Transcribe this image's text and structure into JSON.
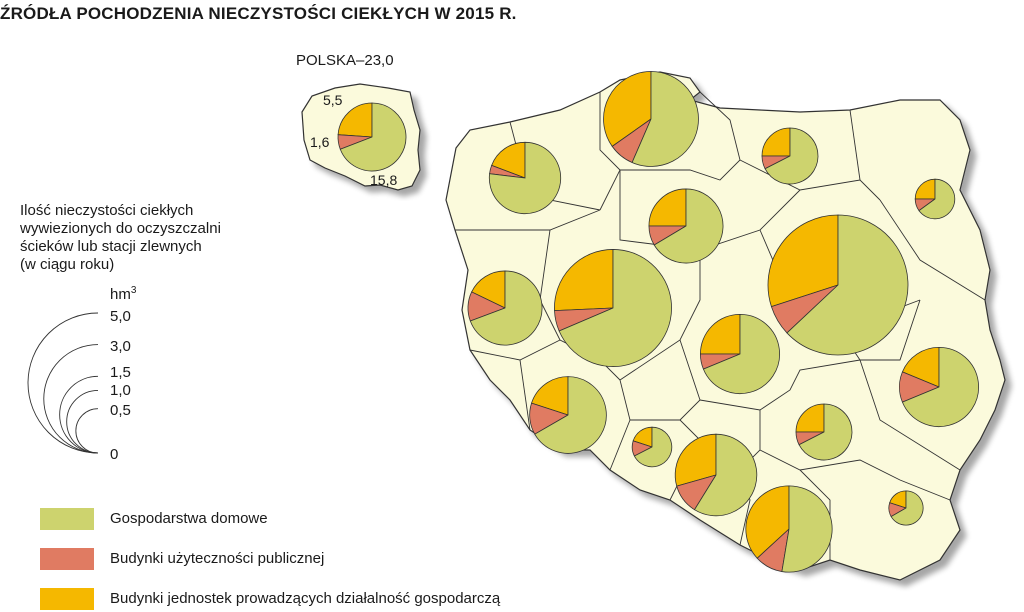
{
  "title": "ŹRÓDŁA POCHODZENIA NIECZYSTOŚCI CIEKŁYCH W 2015 R.",
  "inset": {
    "label": "POLSKA–23,0",
    "total": 23.0,
    "values": {
      "budynki_jednostek": 5.5,
      "budynki_uzytecznosci": 1.6,
      "gospodarstwa_domowe": 15.8
    },
    "labels": [
      "5,5",
      "1,6",
      "15,8"
    ]
  },
  "scale": {
    "title_lines": [
      "Ilość nieczystości ciekłych",
      "wywiezionych do oczyszczalni",
      "ścieków lub stacji zlewnych",
      "(w ciągu roku)"
    ],
    "unit": "hm",
    "unit_exp": "3",
    "values": [
      5.0,
      3.0,
      1.5,
      1.0,
      0.5,
      0
    ],
    "labels": [
      "5,0",
      "3,0",
      "1,5",
      "1,0",
      "0,5",
      "0"
    ]
  },
  "legend": [
    {
      "label": "Gospodarstwa domowe",
      "color": "#cdd36e"
    },
    {
      "label": "Budynki użyteczności publicznej",
      "color": "#e07b62"
    },
    {
      "label": "Budynki jednostek prowadzących działalność gospodarczą",
      "color": "#f5b800"
    }
  ],
  "colors": {
    "map_fill": "#fbfadc",
    "map_stroke": "#333333",
    "outline": "#333333"
  },
  "regions": [
    {
      "total": 1.3,
      "budynki_jednostek": 0.25,
      "budynki_uzytecznosci": 0.05
    },
    {
      "total": 2.3,
      "budynki_jednostek": 0.8,
      "budynki_uzytecznosci": 0.2
    },
    {
      "total": 0.8,
      "budynki_jednostek": 0.2,
      "budynki_uzytecznosci": 0.06
    },
    {
      "total": 0.4,
      "budynki_jednostek": 0.1,
      "budynki_uzytecznosci": 0.04
    },
    {
      "total": 1.4,
      "budynki_jednostek": 0.35,
      "budynki_uzytecznosci": 0.12
    },
    {
      "total": 5.0,
      "budynki_jednostek": 1.5,
      "budynki_uzytecznosci": 0.35
    },
    {
      "total": 1.4,
      "budynki_jednostek": 0.25,
      "budynki_uzytecznosci": 0.18
    },
    {
      "total": 3.5,
      "budynki_jednostek": 0.9,
      "budynki_uzytecznosci": 0.2
    },
    {
      "total": 1.6,
      "budynki_jednostek": 0.4,
      "budynki_uzytecznosci": 0.1
    },
    {
      "total": 1.5,
      "budynki_jednostek": 0.3,
      "budynki_uzytecznosci": 0.2
    },
    {
      "total": 1.6,
      "budynki_jednostek": 0.3,
      "budynki_uzytecznosci": 0.2
    },
    {
      "total": 0.4,
      "budynki_jednostek": 0.08,
      "budynki_uzytecznosci": 0.05
    },
    {
      "total": 1.7,
      "budynki_jednostek": 0.5,
      "budynki_uzytecznosci": 0.2
    },
    {
      "total": 0.8,
      "budynki_jednostek": 0.2,
      "budynki_uzytecznosci": 0.06
    },
    {
      "total": 1.9,
      "budynki_jednostek": 0.7,
      "budynki_uzytecznosci": 0.2
    },
    {
      "total": 0.3,
      "budynki_jednostek": 0.06,
      "budynki_uzytecznosci": 0.04
    }
  ]
}
